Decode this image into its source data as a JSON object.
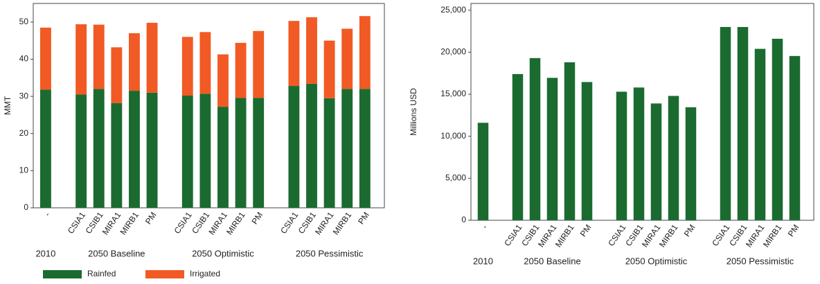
{
  "chart_data": [
    {
      "type": "stacked-bar",
      "ylabel": "MMT",
      "ylim": [
        0,
        55
      ],
      "yticks": [
        0,
        10,
        20,
        30,
        40,
        50
      ],
      "legend": "bottom-left",
      "groups": [
        {
          "name": "2010",
          "categories": [
            "-"
          ]
        },
        {
          "name": "2050 Baseline",
          "categories": [
            "CSIA1",
            "CSIB1",
            "MIRA1",
            "MIRB1",
            "PM"
          ]
        },
        {
          "name": "2050 Optimistic",
          "categories": [
            "CSIA1",
            "CSIB1",
            "MIRA1",
            "MIRB1",
            "PM"
          ]
        },
        {
          "name": "2050 Pessimistic",
          "categories": [
            "CSIA1",
            "CSIB1",
            "MIRA1",
            "MIRB1",
            "PM"
          ]
        }
      ],
      "series": [
        {
          "name": "Rainfed",
          "color": "#1b6b30",
          "values": [
            [
              31.8
            ],
            [
              30.5,
              32,
              28.2,
              31.5,
              31
            ],
            [
              30.2,
              30.7,
              27.2,
              29.6,
              29.6
            ],
            [
              32.8,
              33.4,
              29.5,
              32,
              32
            ]
          ]
        },
        {
          "name": "Irrigated",
          "color": "#f15a24",
          "values": [
            [
              16.7
            ],
            [
              18.9,
              17.3,
              15,
              15.5,
              18.8
            ],
            [
              15.8,
              16.6,
              14.1,
              14.8,
              18
            ],
            [
              17.5,
              17.9,
              15.5,
              16.2,
              19.6
            ]
          ]
        }
      ]
    },
    {
      "type": "bar",
      "ylabel": "Millions USD",
      "ylim": [
        0,
        25800
      ],
      "color": "#1b6b30",
      "yticks": [
        0,
        {
          "value": 5000,
          "label": "5,000"
        },
        {
          "value": 10000,
          "label": "10,000"
        },
        {
          "value": 15000,
          "label": "15,000"
        },
        {
          "value": 20000,
          "label": "20,000"
        },
        {
          "value": 25000,
          "label": "25,000"
        }
      ],
      "groups": [
        {
          "name": "2010",
          "categories": [
            "-"
          ],
          "values": [
            11600
          ]
        },
        {
          "name": "2050 Baseline",
          "categories": [
            "CSIA1",
            "CSIB1",
            "MIRA1",
            "MIRB1",
            "PM"
          ],
          "values": [
            17400,
            19300,
            16950,
            18800,
            16450
          ]
        },
        {
          "name": "2050 Optimistic",
          "categories": [
            "CSIA1",
            "CSIB1",
            "MIRA1",
            "MIRB1",
            "PM"
          ],
          "values": [
            15300,
            15800,
            13900,
            14800,
            13450
          ]
        },
        {
          "name": "2050 Pessimistic",
          "categories": [
            "CSIA1",
            "CSIB1",
            "MIRA1",
            "MIRB1",
            "PM"
          ],
          "values": [
            23000,
            23000,
            20400,
            21600,
            19550
          ]
        }
      ]
    }
  ]
}
